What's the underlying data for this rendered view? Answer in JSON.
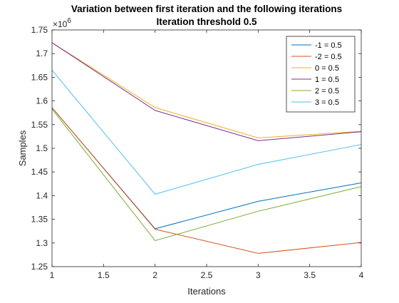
{
  "chart_data": {
    "type": "line",
    "title": "Variation between first iteration and the following iterations",
    "subtitle": "Iteration threshold 0.5",
    "xlabel": "Iterations",
    "ylabel": "Samples",
    "exponent_label": "×10",
    "exponent_power": "6",
    "xlim": [
      1,
      4
    ],
    "ylim": [
      1.25,
      1.75
    ],
    "x_ticks": [
      1,
      1.5,
      2,
      2.5,
      3,
      3.5,
      4
    ],
    "x_tick_labels": [
      "1",
      "1.5",
      "2",
      "2.5",
      "3",
      "3.5",
      "4"
    ],
    "y_ticks": [
      1.25,
      1.3,
      1.35,
      1.4,
      1.45,
      1.5,
      1.55,
      1.6,
      1.65,
      1.7,
      1.75
    ],
    "y_tick_labels": [
      "1.25",
      "1.3",
      "1.35",
      "1.4",
      "1.45",
      "1.5",
      "1.55",
      "1.6",
      "1.65",
      "1.7",
      "1.75"
    ],
    "grid": false,
    "legend_position": "top-right",
    "x": [
      1,
      2,
      3,
      4
    ],
    "series": [
      {
        "name": "-1 = 0.5",
        "color": "#0072BD",
        "values": [
          1.586,
          1.33,
          1.388,
          1.427
        ]
      },
      {
        "name": "-2 = 0.5",
        "color": "#D95319",
        "values": [
          1.586,
          1.329,
          1.278,
          1.301
        ]
      },
      {
        "name": "0 = 0.5",
        "color": "#EDB120",
        "values": [
          1.723,
          1.586,
          1.522,
          1.536
        ]
      },
      {
        "name": "1 = 0.5",
        "color": "#7E2F8E",
        "values": [
          1.723,
          1.58,
          1.516,
          1.535
        ]
      },
      {
        "name": "2 = 0.5",
        "color": "#77AC30",
        "values": [
          1.583,
          1.305,
          1.367,
          1.419
        ]
      },
      {
        "name": "3 = 0.5",
        "color": "#4DBEEE",
        "values": [
          1.665,
          1.403,
          1.466,
          1.508
        ]
      }
    ]
  }
}
